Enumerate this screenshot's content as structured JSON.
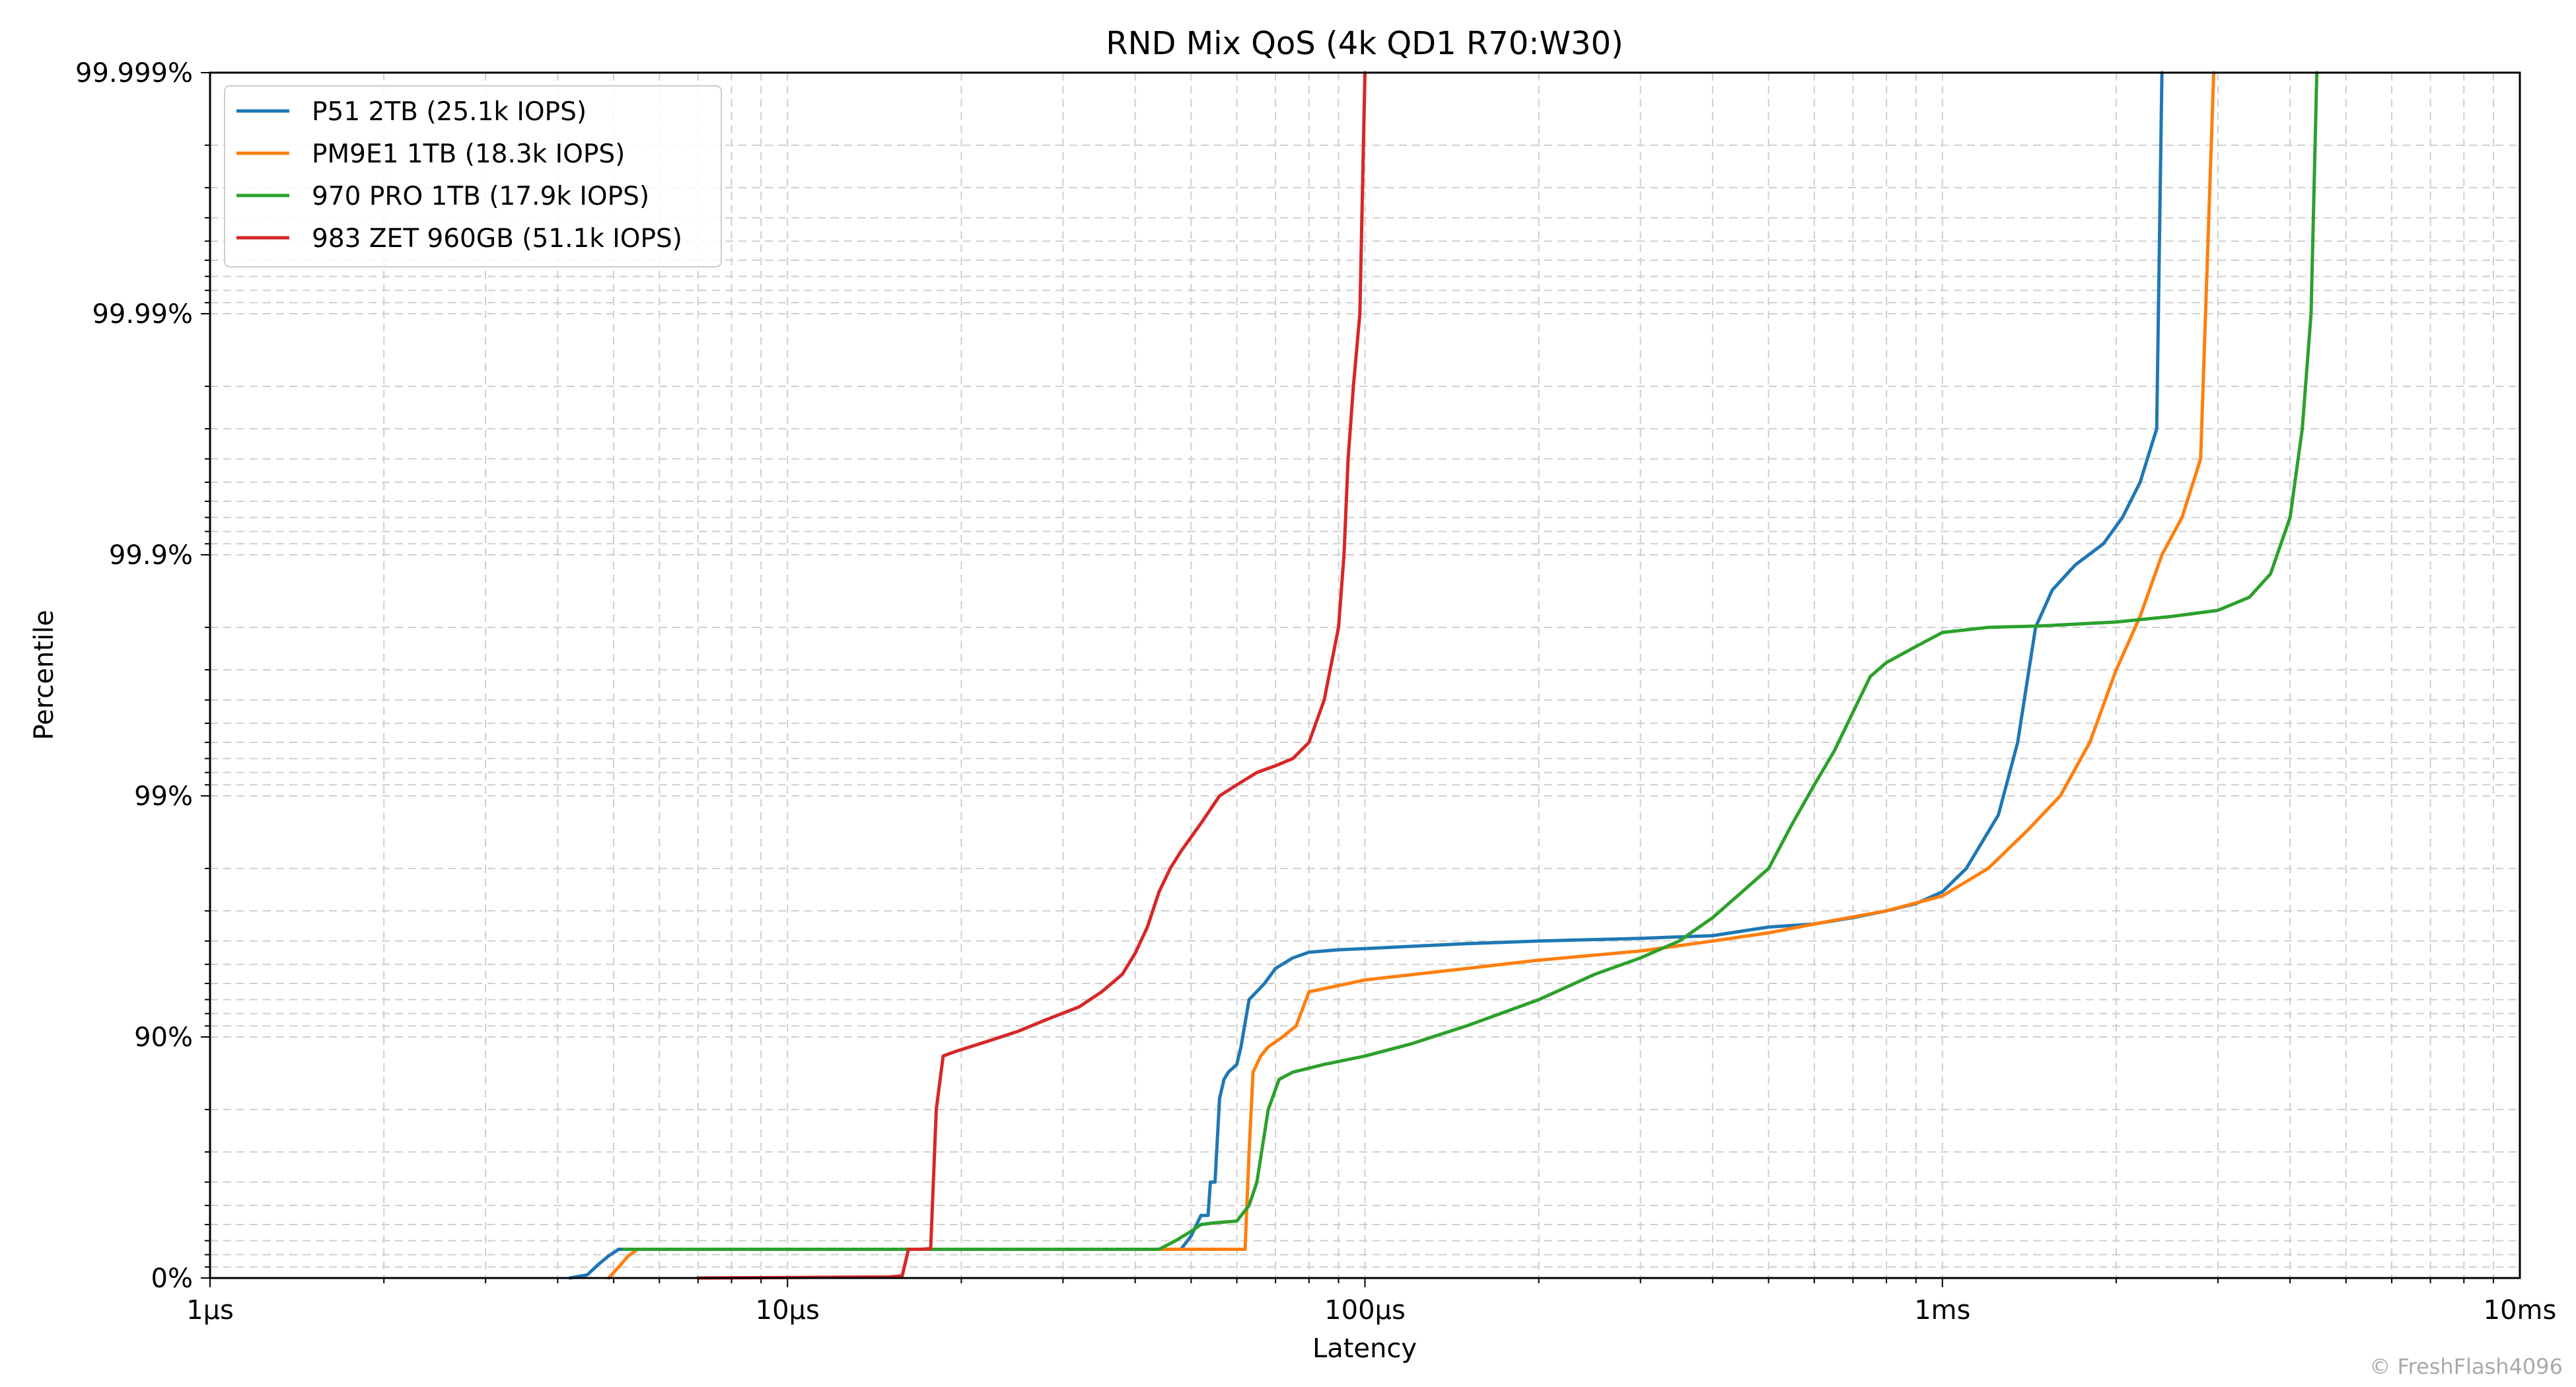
{
  "chart_data": {
    "type": "line",
    "title": "RND Mix QoS (4k QD1 R70:W30)",
    "xlabel": "Latency",
    "ylabel": "Percentile",
    "x_scale": "log",
    "y_scale": "nines",
    "xlim_us": [
      1,
      10000
    ],
    "ylim_nines": [
      0,
      5
    ],
    "grid": true,
    "legend_position": "top-left",
    "x_ticks": [
      {
        "value_us": 1,
        "label": "1µs"
      },
      {
        "value_us": 10,
        "label": "10µs"
      },
      {
        "value_us": 100,
        "label": "100µs"
      },
      {
        "value_us": 1000,
        "label": "1ms"
      },
      {
        "value_us": 10000,
        "label": "10ms"
      }
    ],
    "y_ticks": [
      {
        "nines": 0,
        "label": "0%"
      },
      {
        "nines": 1,
        "label": "90%"
      },
      {
        "nines": 2,
        "label": "99%"
      },
      {
        "nines": 3,
        "label": "99.9%"
      },
      {
        "nines": 4,
        "label": "99.99%"
      },
      {
        "nines": 5,
        "label": "99.999%"
      }
    ],
    "series": [
      {
        "name": "P51 2TB (25.1k IOPS)",
        "color": "#1f77b4",
        "points_us_percentile": [
          [
            4.2,
            0.0
          ],
          [
            4.5,
            3.0
          ],
          [
            4.7,
            12.0
          ],
          [
            4.9,
            19.0
          ],
          [
            5.1,
            24.0
          ],
          [
            5.3,
            24.0
          ],
          [
            10,
            24.0
          ],
          [
            30,
            24.0
          ],
          [
            44,
            24.0
          ],
          [
            48,
            24.0
          ],
          [
            50,
            33.0
          ],
          [
            52,
            45.0
          ],
          [
            53.5,
            45.0
          ],
          [
            54,
            60.0
          ],
          [
            55,
            60.0
          ],
          [
            56,
            82.0
          ],
          [
            57,
            85.0
          ],
          [
            58,
            86.0
          ],
          [
            60,
            87.0
          ],
          [
            61,
            89.0
          ],
          [
            63,
            93.0
          ],
          [
            67,
            94.0
          ],
          [
            70,
            94.8
          ],
          [
            75,
            95.3
          ],
          [
            80,
            95.55
          ],
          [
            90,
            95.65
          ],
          [
            100,
            95.7
          ],
          [
            150,
            95.9
          ],
          [
            200,
            96.0
          ],
          [
            300,
            96.1
          ],
          [
            400,
            96.2
          ],
          [
            500,
            96.5
          ],
          [
            600,
            96.6
          ],
          [
            700,
            96.8
          ],
          [
            800,
            97.0
          ],
          [
            900,
            97.2
          ],
          [
            1000,
            97.5
          ],
          [
            1100,
            98.0
          ],
          [
            1250,
            98.8
          ],
          [
            1350,
            99.4
          ],
          [
            1450,
            99.8
          ],
          [
            1550,
            99.86
          ],
          [
            1700,
            99.89
          ],
          [
            1900,
            99.91
          ],
          [
            2050,
            99.93
          ],
          [
            2200,
            99.95
          ],
          [
            2350,
            99.97
          ],
          [
            2400,
            99.999
          ]
        ]
      },
      {
        "name": "PM9E1 1TB (18.3k IOPS)",
        "color": "#ff7f0e",
        "points_us_percentile": [
          [
            4.9,
            0.0
          ],
          [
            5.1,
            10.0
          ],
          [
            5.3,
            19.0
          ],
          [
            5.5,
            24.0
          ],
          [
            10,
            24.0
          ],
          [
            30,
            24.0
          ],
          [
            55,
            24.0
          ],
          [
            62,
            24.0
          ],
          [
            63,
            70.0
          ],
          [
            64,
            86.0
          ],
          [
            66,
            88.0
          ],
          [
            68,
            89.0
          ],
          [
            72,
            90.0
          ],
          [
            76,
            91.0
          ],
          [
            80,
            93.5
          ],
          [
            100,
            94.2
          ],
          [
            150,
            94.8
          ],
          [
            200,
            95.2
          ],
          [
            300,
            95.6
          ],
          [
            400,
            96.0
          ],
          [
            500,
            96.3
          ],
          [
            600,
            96.6
          ],
          [
            800,
            97.0
          ],
          [
            1000,
            97.4
          ],
          [
            1200,
            98.0
          ],
          [
            1400,
            98.6
          ],
          [
            1600,
            99.0
          ],
          [
            1800,
            99.4
          ],
          [
            2000,
            99.7
          ],
          [
            2200,
            99.82
          ],
          [
            2400,
            99.9
          ],
          [
            2600,
            99.93
          ],
          [
            2800,
            99.96
          ],
          [
            2950,
            99.999
          ]
        ]
      },
      {
        "name": "970 PRO 1TB (17.9k IOPS)",
        "color": "#2ca02c",
        "points_us_percentile": [
          [
            5.2,
            24.0
          ],
          [
            10,
            24.0
          ],
          [
            30,
            24.0
          ],
          [
            44,
            24.0
          ],
          [
            47,
            30.0
          ],
          [
            50,
            36.0
          ],
          [
            52,
            40.0
          ],
          [
            55,
            41.0
          ],
          [
            60,
            42.0
          ],
          [
            63,
            50.0
          ],
          [
            65,
            60.0
          ],
          [
            68,
            80.0
          ],
          [
            71,
            85.0
          ],
          [
            75,
            86.0
          ],
          [
            85,
            87.0
          ],
          [
            100,
            88.0
          ],
          [
            120,
            89.3
          ],
          [
            150,
            91.0
          ],
          [
            200,
            93.0
          ],
          [
            250,
            94.5
          ],
          [
            300,
            95.3
          ],
          [
            350,
            96.0
          ],
          [
            400,
            96.8
          ],
          [
            450,
            97.5
          ],
          [
            500,
            98.0
          ],
          [
            550,
            98.7
          ],
          [
            600,
            99.1
          ],
          [
            650,
            99.35
          ],
          [
            700,
            99.55
          ],
          [
            750,
            99.68
          ],
          [
            800,
            99.72
          ],
          [
            900,
            99.76
          ],
          [
            1000,
            99.79
          ],
          [
            1200,
            99.8
          ],
          [
            1500,
            99.803
          ],
          [
            2000,
            99.81
          ],
          [
            2500,
            99.82
          ],
          [
            3000,
            99.83
          ],
          [
            3400,
            99.85
          ],
          [
            3700,
            99.88
          ],
          [
            4000,
            99.93
          ],
          [
            4200,
            99.97
          ],
          [
            4350,
            99.99
          ],
          [
            4450,
            99.999
          ]
        ]
      },
      {
        "name": "983 ZET 960GB (51.1k IOPS)",
        "color": "#d62728",
        "points_us_percentile": [
          [
            7.0,
            0.0
          ],
          [
            10,
            0.5
          ],
          [
            15,
            1.0
          ],
          [
            15.8,
            2.0
          ],
          [
            16.2,
            24.0
          ],
          [
            17,
            24.0
          ],
          [
            17.7,
            24.5
          ],
          [
            18.1,
            80.0
          ],
          [
            18.6,
            88.0
          ],
          [
            19.5,
            88.5
          ],
          [
            22,
            89.5
          ],
          [
            25,
            90.5
          ],
          [
            28,
            91.5
          ],
          [
            32,
            92.5
          ],
          [
            35,
            93.5
          ],
          [
            38,
            94.5
          ],
          [
            40,
            95.5
          ],
          [
            42,
            96.5
          ],
          [
            44,
            97.5
          ],
          [
            46,
            98.0
          ],
          [
            48,
            98.3
          ],
          [
            52,
            98.7
          ],
          [
            56,
            99.0
          ],
          [
            60,
            99.1
          ],
          [
            65,
            99.2
          ],
          [
            70,
            99.25
          ],
          [
            75,
            99.3
          ],
          [
            80,
            99.4
          ],
          [
            85,
            99.6
          ],
          [
            90,
            99.8
          ],
          [
            92,
            99.9
          ],
          [
            93.5,
            99.96
          ],
          [
            95.5,
            99.98
          ],
          [
            98,
            99.99
          ],
          [
            100,
            99.999
          ]
        ]
      }
    ]
  },
  "credit": "© FreshFlash4096"
}
